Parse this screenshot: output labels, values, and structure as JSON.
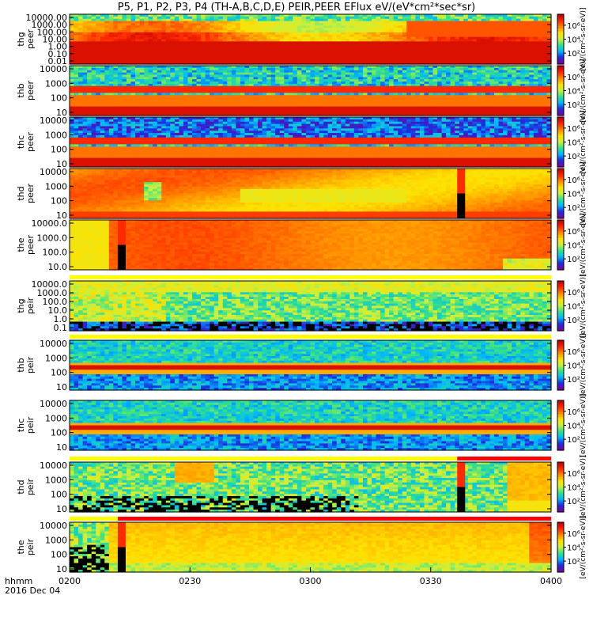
{
  "title": "P5, P1, P2, P3, P4 (TH-A,B,C,D,E) PEIR,PEER EFlux eV/(eV*cm²*sec*sr)",
  "footer": {
    "time_label": "hhmm",
    "date_label": "2016 Dec 04"
  },
  "colorbar": {
    "tick_labels": [
      "10⁶",
      "10⁴",
      "10²"
    ],
    "unit_label": "[eV/(cm²-s-sr-eV)]",
    "colors": [
      "#7a00a0",
      "#1a2fe0",
      "#00b8ff",
      "#32e08a",
      "#c8f040",
      "#ffe000",
      "#ff8a00",
      "#ff2a00",
      "#c00000"
    ]
  },
  "chart_data": {
    "type": "heatmap",
    "x_ticks": [
      "0200",
      "0230",
      "0300",
      "0330",
      "0400"
    ],
    "xlim": [
      "02:00",
      "04:00"
    ],
    "colormap_colors": [
      "#7a00a0",
      "#1a2fe0",
      "#00b8ff",
      "#32e08a",
      "#c8f040",
      "#ffe000",
      "#ff8a00",
      "#ff2a00",
      "#c00000"
    ],
    "panels": [
      {
        "label": "thg peer",
        "y_ticks": [
          "10000.00",
          "1000.00",
          "100.00",
          "10.00",
          "1.00",
          "0.10",
          "0.01"
        ],
        "scale": "log",
        "style": "thg_peer",
        "bar": null
      },
      {
        "label": "thb peer",
        "y_ticks": [
          "10000",
          "1000",
          "100",
          "10"
        ],
        "scale": "log",
        "style": "thb_peer",
        "bar": null
      },
      {
        "label": "thc peer",
        "y_ticks": [
          "10000",
          "1000",
          "100",
          "10"
        ],
        "scale": "log",
        "style": "thc_peer",
        "bar": null
      },
      {
        "label": "thd peer",
        "y_ticks": [
          "10000",
          "1000",
          "100",
          "10"
        ],
        "scale": "log",
        "style": "thd_peer",
        "bar": null
      },
      {
        "label": "the peer",
        "y_ticks": [
          "10000.0",
          "1000.0",
          "100.0",
          "10.0"
        ],
        "scale": "log",
        "style": "the_peer",
        "bar": null
      },
      {
        "label": "thg peir",
        "y_ticks": [
          "10000.0",
          "1000.0",
          "100.0",
          "10.0",
          "1.0",
          "0.1"
        ],
        "scale": "log",
        "style": "thg_peir",
        "bar": "yellow"
      },
      {
        "label": "thb peir",
        "y_ticks": [
          "10000",
          "1000",
          "100",
          "10"
        ],
        "scale": "log",
        "style": "thb_peir",
        "bar": "yellow"
      },
      {
        "label": "thc peir",
        "y_ticks": [
          "10000",
          "1000",
          "100",
          "10"
        ],
        "scale": "log",
        "style": "thc_peir",
        "bar": null
      },
      {
        "label": "thd peir",
        "y_ticks": [
          "10000",
          "1000",
          "100",
          "10"
        ],
        "scale": "log",
        "style": "thd_peir",
        "bar": "red_late"
      },
      {
        "label": "the peir",
        "y_ticks": [
          "10000",
          "1000",
          "100",
          "10"
        ],
        "scale": "log",
        "style": "the_peir",
        "bar": "red_early"
      }
    ]
  }
}
